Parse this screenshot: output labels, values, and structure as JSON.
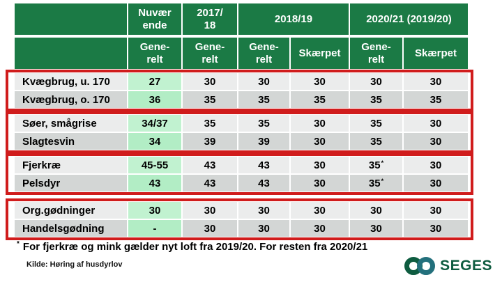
{
  "colors": {
    "header_green": "#1b7a45",
    "box_red": "#d01c1c",
    "row_light": "#ebecec",
    "row_dark": "#d3d6d5",
    "current_light": "#c1f2d0",
    "current_dark": "#b2edc5",
    "logo_green": "#0e5c40",
    "logo_teal": "#23707c"
  },
  "table": {
    "header_row1": [
      {
        "text": ""
      },
      {
        "text": "Nuvær\nende"
      },
      {
        "text": "2017/\n18"
      },
      {
        "text": "2018/19"
      },
      {
        "text": "2020/21 (2019/20)"
      }
    ],
    "header_row2": [
      "",
      "Gene-\nrelt",
      "Gene-\nrelt",
      "Gene-\nrelt",
      "Skærpet",
      "Gene-\nrelt",
      "Skærpet"
    ],
    "groups": [
      {
        "rows": [
          {
            "label": "Kvægbrug, u. 170",
            "values": [
              "27",
              "30",
              "30",
              "30",
              "30",
              "30"
            ]
          },
          {
            "label": "Kvægbrug, o. 170",
            "values": [
              "36",
              "35",
              "35",
              "35",
              "35",
              "35"
            ]
          }
        ]
      },
      {
        "rows": [
          {
            "label": "Søer, smågrise",
            "values": [
              "34/37",
              "35",
              "35",
              "30",
              "35",
              "30"
            ]
          },
          {
            "label": "Slagtesvin",
            "values": [
              "34",
              "39",
              "39",
              "30",
              "35",
              "30"
            ]
          }
        ]
      },
      {
        "rows": [
          {
            "label": "Fjerkræ",
            "values": [
              "45-55",
              "43",
              "43",
              "30",
              "35*",
              "30"
            ]
          },
          {
            "label": "Pelsdyr",
            "values": [
              "43",
              "43",
              "43",
              "30",
              "35*",
              "30"
            ]
          }
        ]
      },
      {
        "rows": [
          {
            "label": "Org.gødninger",
            "values": [
              "30",
              "30",
              "30",
              "30",
              "30",
              "30"
            ]
          },
          {
            "label": "Handelsgødning",
            "values": [
              "-",
              "30",
              "30",
              "30",
              "30",
              "30"
            ]
          }
        ]
      }
    ]
  },
  "footnote": {
    "marker": "*",
    "text": "For fjerkræ og mink gælder nyt loft fra 2019/20. For resten fra 2020/21"
  },
  "source": "Kilde: Høring af husdyrlov",
  "logo": {
    "text": "SEGES"
  }
}
